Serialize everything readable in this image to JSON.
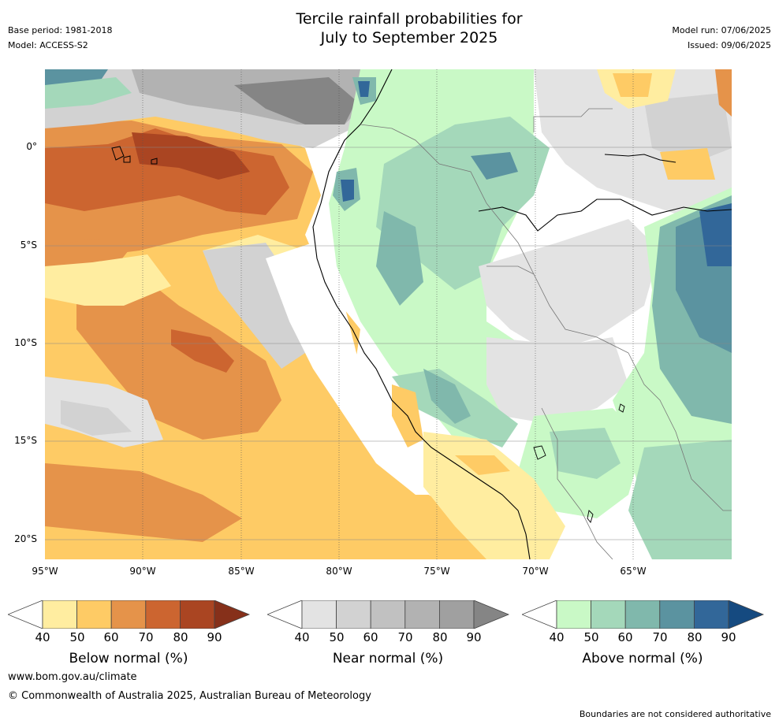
{
  "header": {
    "title_line1": "Tercile rainfall probabilities for",
    "title_line2": "July to September 2025",
    "base_period": "Base period: 1981-2018",
    "model": "Model: ACCESS-S2",
    "model_run": "Model run: 07/06/2025",
    "issued": "Issued: 09/06/2025"
  },
  "map": {
    "lon_labels": [
      "95°W",
      "90°W",
      "85°W",
      "80°W",
      "75°W",
      "70°W",
      "65°W"
    ],
    "lat_labels": [
      "0°",
      "5°S",
      "10°S",
      "15°S",
      "20°S"
    ]
  },
  "colorbars": [
    {
      "id": "below",
      "label": "Below normal (%)",
      "ticks": [
        "40",
        "50",
        "60",
        "70",
        "80",
        "90"
      ],
      "colors": [
        "#ffeda0",
        "#fecb65",
        "#e5934a",
        "#cc6530",
        "#aa4522",
        "#86301a"
      ]
    },
    {
      "id": "near",
      "label": "Near normal (%)",
      "ticks": [
        "40",
        "50",
        "60",
        "70",
        "80",
        "90"
      ],
      "colors": [
        "#e3e3e3",
        "#d2d2d2",
        "#c1c1c1",
        "#b2b2b2",
        "#a0a0a0",
        "#858585"
      ]
    },
    {
      "id": "above",
      "label": "Above normal (%)",
      "ticks": [
        "40",
        "50",
        "60",
        "70",
        "80",
        "90"
      ],
      "colors": [
        "#c9f9c6",
        "#a4d8ba",
        "#80b8ac",
        "#5b93a0",
        "#326799",
        "#154a80"
      ]
    }
  ],
  "footer": {
    "website": "www.bom.gov.au/climate",
    "copyright": "© Commonwealth of Australia 2025, Australian Bureau of Meteorology",
    "disclaimer": "Boundaries are not considered authoritative"
  }
}
